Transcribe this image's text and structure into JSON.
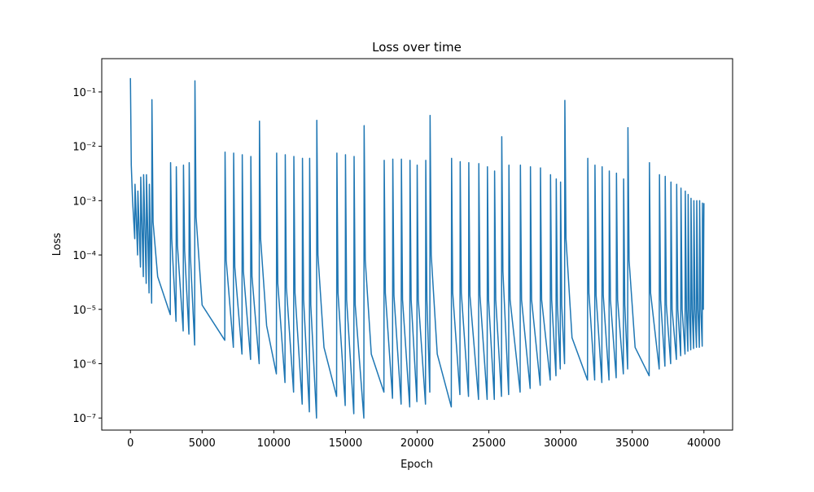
{
  "chart_data": {
    "type": "line",
    "title": "Loss over time",
    "x_label": "Epoch",
    "y_label": "Loss",
    "xlim": [
      -2000,
      42000
    ],
    "xticks": [
      0,
      5000,
      10000,
      15000,
      20000,
      25000,
      30000,
      35000,
      40000
    ],
    "ylim": [
      6e-08,
      0.41
    ],
    "y_log": true,
    "yticks": [
      {
        "value": 1e-07,
        "label": "10⁻⁷"
      },
      {
        "value": 1e-06,
        "label": "10⁻⁶"
      },
      {
        "value": 1e-05,
        "label": "10⁻⁵"
      },
      {
        "value": 0.0001,
        "label": "10⁻⁴"
      },
      {
        "value": 0.001,
        "label": "10⁻³"
      },
      {
        "value": 0.01,
        "label": "10⁻²"
      },
      {
        "value": 0.1,
        "label": "10⁻¹"
      }
    ],
    "x": [
      0,
      60,
      150,
      300,
      320,
      500,
      520,
      700,
      720,
      900,
      920,
      1100,
      1120,
      1300,
      1320,
      1480,
      1500,
      1580,
      1900,
      2780,
      2800,
      2880,
      3180,
      3200,
      3280,
      3680,
      3700,
      3780,
      4080,
      4100,
      4180,
      4480,
      4500,
      4580,
      5000,
      6580,
      6600,
      6680,
      7180,
      7200,
      7280,
      7780,
      7800,
      7880,
      8380,
      8400,
      8480,
      8980,
      9000,
      9080,
      9500,
      10180,
      10200,
      10280,
      10780,
      10800,
      10880,
      11380,
      11400,
      11480,
      11980,
      12000,
      12080,
      12480,
      12500,
      12580,
      12980,
      13000,
      13080,
      13500,
      14380,
      14400,
      14480,
      14980,
      15000,
      15080,
      15580,
      15600,
      15680,
      16280,
      16300,
      16380,
      16800,
      17680,
      17700,
      17780,
      18280,
      18300,
      18380,
      18880,
      18900,
      18980,
      19480,
      19500,
      19580,
      19980,
      20000,
      20080,
      20580,
      20600,
      20680,
      20880,
      20900,
      20980,
      21400,
      22380,
      22400,
      22480,
      22980,
      23000,
      23080,
      23580,
      23600,
      23680,
      24280,
      24300,
      24380,
      24880,
      24900,
      24980,
      25380,
      25400,
      25480,
      25880,
      25900,
      25980,
      26380,
      26400,
      26480,
      27180,
      27200,
      27280,
      27880,
      27900,
      27980,
      28580,
      28600,
      28680,
      29280,
      29300,
      29380,
      29680,
      29700,
      29780,
      29980,
      30000,
      30080,
      30280,
      30300,
      30380,
      30800,
      31880,
      31900,
      31980,
      32380,
      32400,
      32480,
      32880,
      32900,
      32980,
      33380,
      33400,
      33480,
      33880,
      33900,
      33980,
      34380,
      34400,
      34480,
      34680,
      34700,
      34780,
      35200,
      36180,
      36200,
      36280,
      36880,
      36900,
      36980,
      37280,
      37300,
      37380,
      37680,
      37700,
      37780,
      38080,
      38100,
      38180,
      38380,
      38400,
      38480,
      38680,
      38700,
      38780,
      38880,
      38900,
      38980,
      39080,
      39100,
      39180,
      39280,
      39300,
      39380,
      39480,
      39500,
      39580,
      39680,
      39700,
      39780,
      39880,
      39900,
      39960,
      40000
    ],
    "series": [
      {
        "name": "Loss",
        "color": "#1f77b4",
        "values": [
          0.18,
          0.0045,
          0.001,
          0.0002,
          0.002,
          0.0001,
          0.0015,
          6e-05,
          0.0027,
          4e-05,
          0.003,
          3e-05,
          0.003,
          2e-05,
          0.002,
          1.3e-05,
          0.072,
          0.0004,
          4e-05,
          8e-06,
          0.005,
          0.0002,
          6e-06,
          0.0042,
          0.00015,
          4e-06,
          0.0045,
          0.00012,
          3.5e-06,
          0.005,
          0.0001,
          2.2e-06,
          0.16,
          0.0005,
          1.2e-05,
          2.7e-06,
          0.0078,
          8e-05,
          2e-06,
          0.0075,
          6e-05,
          1.5e-06,
          0.007,
          5e-05,
          1.2e-06,
          0.0065,
          4e-05,
          1e-06,
          0.029,
          0.0002,
          5e-06,
          6.5e-07,
          0.0075,
          3e-05,
          4.5e-07,
          0.007,
          2.5e-05,
          3e-07,
          0.0065,
          2e-05,
          1.8e-07,
          0.006,
          1.5e-05,
          1.3e-07,
          0.006,
          1.2e-05,
          1e-07,
          0.03,
          0.0001,
          2e-06,
          2.5e-07,
          0.0075,
          2e-05,
          1.7e-07,
          0.007,
          1.5e-05,
          1.2e-07,
          0.0065,
          1.2e-05,
          1e-07,
          0.024,
          8e-05,
          1.5e-06,
          3e-07,
          0.0055,
          2e-05,
          2.3e-07,
          0.0058,
          1.8e-05,
          1.8e-07,
          0.0058,
          1.5e-05,
          1.6e-07,
          0.0055,
          1.5e-05,
          2e-07,
          0.0045,
          1.5e-05,
          1.8e-07,
          0.0055,
          1.5e-05,
          3e-07,
          0.037,
          0.0001,
          1.5e-06,
          1.6e-07,
          0.006,
          2e-05,
          2.7e-07,
          0.0052,
          2e-05,
          2.5e-07,
          0.005,
          1.8e-05,
          2.2e-07,
          0.0048,
          1.8e-05,
          2.2e-07,
          0.0042,
          1.5e-05,
          2.2e-07,
          0.0035,
          1.5e-05,
          2.5e-07,
          0.015,
          5e-05,
          2.7e-07,
          0.0045,
          1.5e-05,
          3e-07,
          0.0045,
          1.5e-05,
          3.5e-07,
          0.0042,
          1.5e-05,
          4e-07,
          0.004,
          1.5e-05,
          5e-07,
          0.003,
          1.5e-05,
          6e-07,
          0.0025,
          1.2e-05,
          8e-07,
          0.0022,
          1.2e-05,
          1e-06,
          0.07,
          0.0002,
          3e-06,
          5e-07,
          0.006,
          2e-05,
          5e-07,
          0.0045,
          1.8e-05,
          4.5e-07,
          0.0042,
          1.8e-05,
          5e-07,
          0.0035,
          1.5e-05,
          5.5e-07,
          0.0032,
          1.5e-05,
          6.5e-07,
          0.0025,
          1.2e-05,
          8e-07,
          0.022,
          8e-05,
          2e-06,
          6e-07,
          0.005,
          2e-05,
          8e-07,
          0.003,
          1.5e-05,
          9e-07,
          0.0028,
          1.2e-05,
          1e-06,
          0.0022,
          1e-05,
          1.2e-06,
          0.002,
          1e-05,
          1.4e-06,
          0.0017,
          1e-05,
          1.5e-06,
          0.0015,
          1e-05,
          1.7e-06,
          0.0013,
          1e-05,
          1.8e-06,
          0.0011,
          1e-05,
          1.9e-06,
          0.001,
          1e-05,
          2e-06,
          0.001,
          1e-05,
          2e-06,
          0.001,
          1e-05,
          2.1e-06,
          0.0009,
          1e-05,
          0.0009
        ]
      }
    ]
  }
}
